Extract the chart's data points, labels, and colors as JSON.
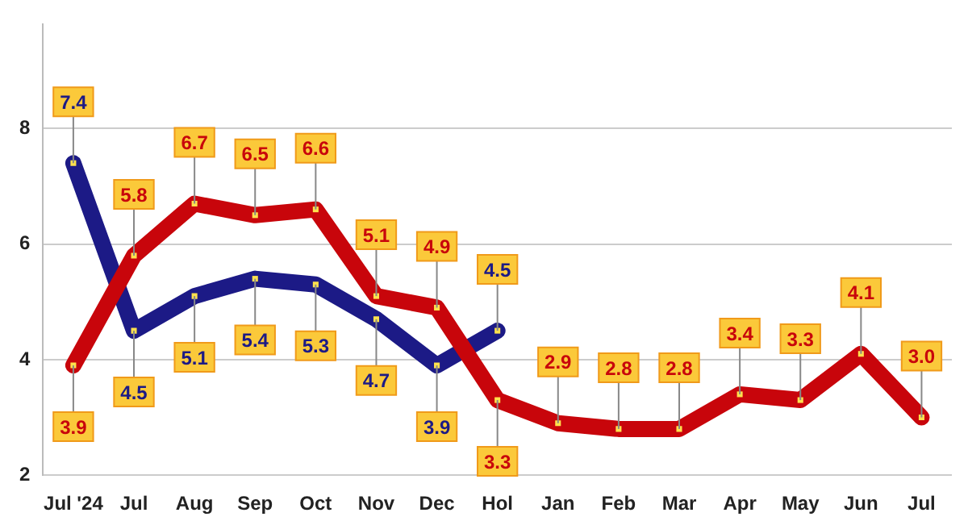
{
  "chart_data": {
    "type": "line",
    "categories": [
      "Jul '24",
      "Jul",
      "Aug",
      "Sep",
      "Oct",
      "Nov",
      "Dec",
      "Hol",
      "Jan",
      "Feb",
      "Mar",
      "Apr",
      "May",
      "Jun",
      "Jul"
    ],
    "series": [
      {
        "color": "#c8050b",
        "values": [
          3.9,
          5.8,
          6.7,
          6.5,
          6.6,
          5.1,
          4.9,
          3.3,
          2.9,
          2.8,
          2.8,
          3.4,
          3.3,
          4.1,
          3.0
        ],
        "value_labels": [
          "3.9",
          "5.8",
          "6.7",
          "6.5",
          "6.6",
          "5.1",
          "4.9",
          "3.3",
          "2.9",
          "2.8",
          "2.8",
          "3.4",
          "3.3",
          "4.1",
          "3.0"
        ]
      },
      {
        "color": "#1c1a86",
        "values": [
          7.4,
          4.5,
          5.1,
          5.4,
          5.3,
          4.7,
          3.9,
          4.5,
          null,
          null,
          null,
          null,
          null,
          null,
          null
        ],
        "value_labels": [
          "7.4",
          "4.5",
          "5.1",
          "5.4",
          "5.3",
          "4.7",
          "3.9",
          "4.5",
          null,
          null,
          null,
          null,
          null,
          null,
          null
        ]
      }
    ],
    "ylim": [
      2,
      9.8
    ],
    "yticks": [
      2,
      4,
      6,
      8
    ],
    "grid": "y",
    "legend": false,
    "marker": "square",
    "line_style": "solid"
  }
}
